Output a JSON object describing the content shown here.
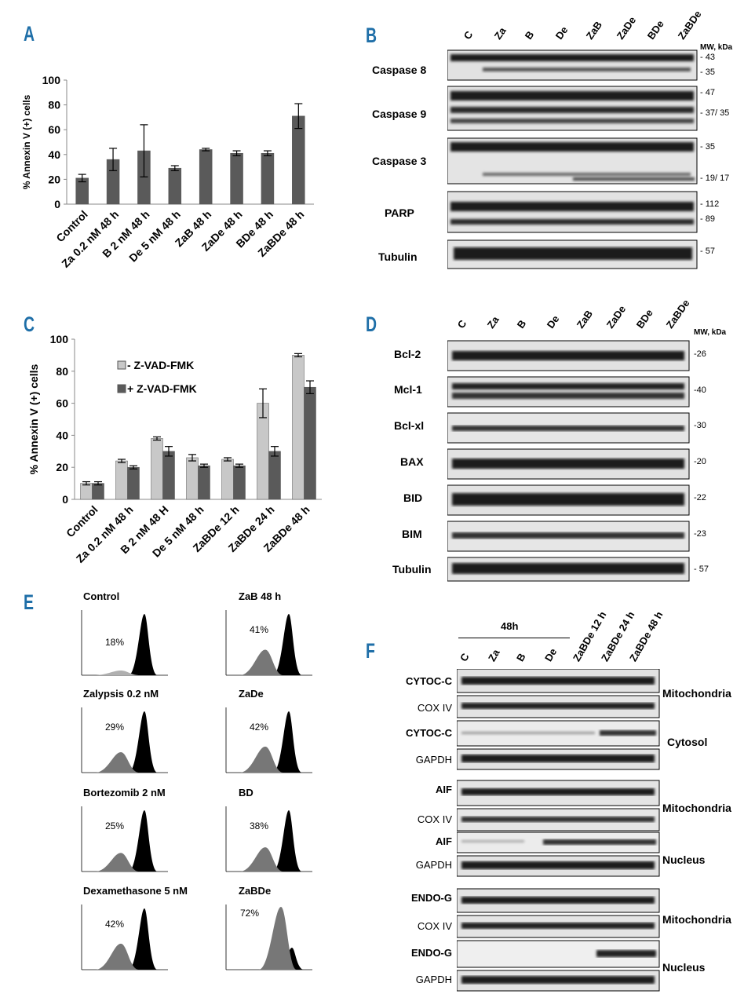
{
  "panels": {
    "A": "A",
    "B": "B",
    "C": "C",
    "D": "D",
    "E": "E",
    "F": "F"
  },
  "chart_data": [
    {
      "type": "bar",
      "panel": "A",
      "ylabel": "% Annexin V (+) cells",
      "xlabel": "",
      "ylim": [
        0,
        100
      ],
      "yticks": [
        0,
        20,
        40,
        60,
        80,
        100
      ],
      "categories": [
        "Control",
        "Za 0.2 nM 48 h",
        "B 2 nM 48 h",
        "De 5 nM 48 h",
        "ZaB 48 h",
        "ZaDe 48 h",
        "BDe 48 h",
        "ZaBDe 48 h"
      ],
      "values": [
        21,
        36,
        43,
        29,
        44,
        41,
        41,
        71
      ],
      "errors": [
        3,
        9,
        21,
        2,
        1,
        2,
        2,
        10
      ],
      "color": "#5a5a5a"
    },
    {
      "type": "bar",
      "panel": "C",
      "ylabel": "% Annexin V (+) cells",
      "xlabel": "",
      "ylim": [
        0,
        100
      ],
      "yticks": [
        0,
        20,
        40,
        60,
        80,
        100
      ],
      "categories": [
        "Control",
        "Za 0.2 nM 48 h",
        "B 2 nM 48 H",
        "De 5 nM 48 h",
        "ZaBDe 12 h",
        "ZaBDe 24 h",
        "ZaBDe 48 h"
      ],
      "legend_position": "top-left",
      "series": [
        {
          "name": "- Z-VAD-FMK",
          "color": "#c8c8c8",
          "values": [
            10,
            24,
            38,
            26,
            25,
            60,
            90
          ],
          "errors": [
            1,
            1,
            1,
            2,
            1,
            9,
            1
          ]
        },
        {
          "name": "+ Z-VAD-FMK",
          "color": "#5a5a5a",
          "values": [
            10,
            20,
            30,
            21,
            21,
            30,
            70
          ],
          "errors": [
            1,
            1,
            3,
            1,
            1,
            3,
            4
          ]
        }
      ]
    }
  ],
  "panelB": {
    "lanes": [
      "C",
      "Za",
      "B",
      "De",
      "ZaB",
      "ZaDe",
      "BDe",
      "ZaBDe"
    ],
    "mw_header": "MW, kDa",
    "proteins": [
      "Caspase 8",
      "Caspase 9",
      "Caspase 3",
      "PARP",
      "Tubulin"
    ],
    "mw": [
      "- 43",
      "- 35",
      "- 47",
      "- 37/ 35",
      "- 35",
      "- 19/ 17",
      "- 112",
      "- 89",
      "- 57"
    ]
  },
  "panelD": {
    "lanes": [
      "C",
      "Za",
      "B",
      "De",
      "ZaB",
      "ZaDe",
      "BDe",
      "ZaBDe"
    ],
    "mw_header": "MW, kDa",
    "proteins": [
      "Bcl-2",
      "Mcl-1",
      "Bcl-xl",
      "BAX",
      "BID",
      "BIM",
      "Tubulin"
    ],
    "mw": [
      "-26",
      "-40",
      "-30",
      "-20",
      "-22",
      "-23",
      "- 57"
    ]
  },
  "panelE": {
    "histograms": [
      {
        "title": "Control",
        "pct": "18%"
      },
      {
        "title": "ZaB 48 h",
        "pct": "41%"
      },
      {
        "title": "Zalypsis 0.2 nM",
        "pct": "29%"
      },
      {
        "title": "ZaDe",
        "pct": "42%"
      },
      {
        "title": "Bortezomib 2 nM",
        "pct": "25%"
      },
      {
        "title": "BD",
        "pct": "38%"
      },
      {
        "title": "Dexamethasone  5 nM",
        "pct": "42%"
      },
      {
        "title": "ZaBDe",
        "pct": "72%"
      }
    ]
  },
  "panelF": {
    "group_label": "48h",
    "lanes": [
      "C",
      "Za",
      "B",
      "De",
      "ZaBDe 12 h",
      "ZaBDe 24 h",
      "ZaBDe 48 h"
    ],
    "rows": [
      "CYTOC-C",
      "COX IV",
      "CYTOC-C",
      "GAPDH",
      "AIF",
      "COX IV",
      "AIF",
      "GAPDH",
      "ENDO-G",
      "COX IV",
      "ENDO-G",
      "GAPDH"
    ],
    "fractions": [
      "Mitochondria",
      "Cytosol",
      "Mitochondria",
      "Nucleus",
      "Mitochondria",
      "Nucleus"
    ]
  }
}
